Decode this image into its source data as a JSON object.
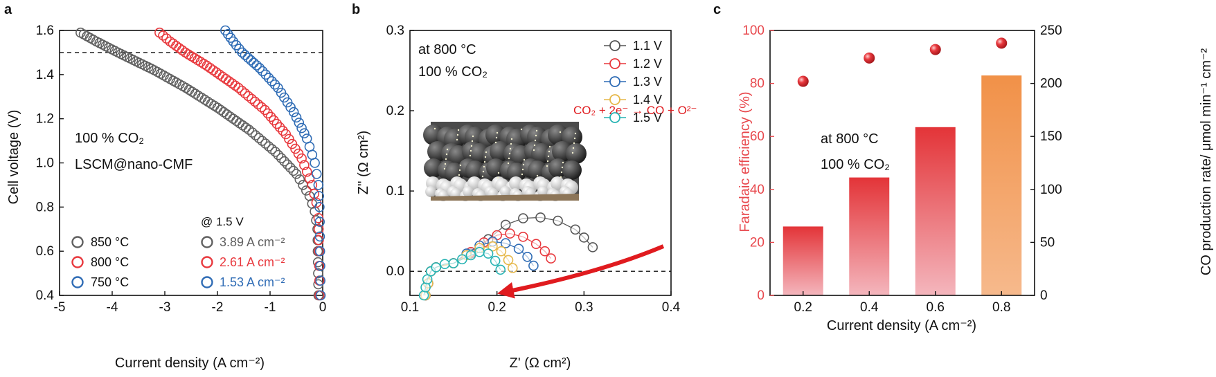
{
  "figure": {
    "panels": {
      "a": {
        "letter": "a",
        "xlabel": "Current density (A cm⁻²)",
        "ylabel": "Cell voltage (V)",
        "annotation_lines": [
          "100 % CO₂",
          "LSCM@nano-CMF"
        ],
        "legend_header": "@ 1.5 V"
      },
      "b": {
        "letter": "b",
        "xlabel": "Z' (Ω cm²)",
        "ylabel": "Z'' (Ω cm²)",
        "annotation_lines": [
          "at 800 °C",
          "100 % CO₂"
        ],
        "reaction": "CO₂ + 2e⁻ → CO + O²⁻"
      },
      "c": {
        "letter": "c",
        "xlabel": "Current density (A cm⁻²)",
        "ylabel_left": "Faradaic efficiency (%)",
        "ylabel_right": "CO production rate/ μmol min⁻¹ cm⁻²",
        "annotation_lines": [
          "at 800 °C",
          "100 % CO₂"
        ]
      }
    }
  },
  "chart_data": [
    {
      "panel": "a",
      "type": "scatter",
      "xlabel": "Current density (A cm⁻²)",
      "ylabel": "Cell voltage (V)",
      "xlim": [
        -5,
        0
      ],
      "ylim": [
        0.4,
        1.6
      ],
      "xticks": [
        "-5",
        "-4",
        "-3",
        "-2",
        "-1",
        "0"
      ],
      "yticks": [
        "0.4",
        "0.6",
        "0.8",
        "1.0",
        "1.2",
        "1.4",
        "1.6"
      ],
      "reference_line_y": 1.5,
      "legend_placement": "bottom-left",
      "series": [
        {
          "name": "850 °C",
          "current_at_1p5V": "3.89 A cm⁻²",
          "color": "#606060",
          "x": [
            -0.08,
            -0.09,
            -0.1,
            -0.15,
            -0.25,
            -0.5,
            -0.9,
            -1.4,
            -2.0,
            -2.6,
            -3.2,
            -3.89,
            -4.3,
            -4.6
          ],
          "y": [
            0.4,
            0.55,
            0.7,
            0.78,
            0.85,
            0.95,
            1.05,
            1.15,
            1.25,
            1.34,
            1.42,
            1.5,
            1.55,
            1.59
          ]
        },
        {
          "name": "800 °C",
          "current_at_1p5V": "2.61 A cm⁻²",
          "color": "#e8383d",
          "x": [
            -0.06,
            -0.07,
            -0.08,
            -0.12,
            -0.2,
            -0.4,
            -0.7,
            -1.1,
            -1.6,
            -2.2,
            -2.61,
            -2.9,
            -3.1
          ],
          "y": [
            0.4,
            0.6,
            0.75,
            0.82,
            0.9,
            1.02,
            1.13,
            1.24,
            1.34,
            1.44,
            1.5,
            1.55,
            1.59
          ]
        },
        {
          "name": "750 °C",
          "current_at_1p5V": "1.53 A cm⁻²",
          "color": "#2f6cb5",
          "x": [
            -0.04,
            -0.05,
            -0.06,
            -0.08,
            -0.15,
            -0.3,
            -0.55,
            -0.85,
            -1.2,
            -1.53,
            -1.7,
            -1.85
          ],
          "y": [
            0.4,
            0.6,
            0.8,
            0.9,
            1.0,
            1.11,
            1.23,
            1.34,
            1.43,
            1.5,
            1.55,
            1.6
          ]
        }
      ]
    },
    {
      "panel": "b",
      "type": "scatter",
      "xlabel": "Z' (Ω cm²)",
      "ylabel": "Z'' (Ω cm²)",
      "xlim": [
        0.1,
        0.4
      ],
      "ylim": [
        -0.03,
        0.3
      ],
      "xticks": [
        "0.1",
        "0.2",
        "0.3",
        "0.4"
      ],
      "yticks": [
        "0.0",
        "0.1",
        "0.2",
        "0.3"
      ],
      "reference_line_y": 0.0,
      "legend_placement": "top-right",
      "series": [
        {
          "name": "1.1 V",
          "color": "#555555",
          "x": [
            0.118,
            0.121,
            0.124,
            0.13,
            0.15,
            0.17,
            0.19,
            0.21,
            0.23,
            0.25,
            0.27,
            0.29,
            0.3,
            0.31
          ],
          "y": [
            -0.03,
            -0.015,
            0.0,
            0.005,
            0.01,
            0.022,
            0.04,
            0.058,
            0.066,
            0.067,
            0.063,
            0.052,
            0.042,
            0.03
          ]
        },
        {
          "name": "1.2 V",
          "color": "#e8383d",
          "x": [
            0.118,
            0.121,
            0.124,
            0.13,
            0.15,
            0.17,
            0.185,
            0.2,
            0.215,
            0.23,
            0.245,
            0.255,
            0.262
          ],
          "y": [
            -0.03,
            -0.015,
            0.0,
            0.005,
            0.01,
            0.024,
            0.036,
            0.045,
            0.047,
            0.043,
            0.034,
            0.025,
            0.016
          ]
        },
        {
          "name": "1.3 V",
          "color": "#2f6cb5",
          "x": [
            0.118,
            0.121,
            0.124,
            0.13,
            0.15,
            0.165,
            0.18,
            0.195,
            0.21,
            0.225,
            0.235,
            0.242
          ],
          "y": [
            -0.03,
            -0.015,
            0.0,
            0.005,
            0.01,
            0.022,
            0.032,
            0.037,
            0.035,
            0.028,
            0.018,
            0.007
          ]
        },
        {
          "name": "1.4 V",
          "color": "#e6b84a",
          "x": [
            0.118,
            0.121,
            0.124,
            0.13,
            0.15,
            0.165,
            0.18,
            0.195,
            0.205,
            0.213,
            0.218
          ],
          "y": [
            -0.03,
            -0.015,
            0.0,
            0.005,
            0.01,
            0.02,
            0.029,
            0.031,
            0.025,
            0.014,
            0.004
          ]
        },
        {
          "name": "1.5 V",
          "color": "#26b3b3",
          "x": [
            0.116,
            0.118,
            0.12,
            0.124,
            0.13,
            0.14,
            0.15,
            0.16,
            0.17,
            0.18,
            0.19,
            0.198,
            0.204
          ],
          "y": [
            -0.03,
            -0.02,
            -0.01,
            0.0,
            0.005,
            0.009,
            0.01,
            0.015,
            0.02,
            0.024,
            0.022,
            0.013,
            0.002
          ]
        }
      ]
    },
    {
      "panel": "c",
      "type": "bar",
      "xlabel": "Current density (A cm⁻²)",
      "ylabel": "Faradaic efficiency (%)",
      "ylabel_right": "CO production rate/ μmol min⁻¹ cm⁻²",
      "categories": [
        "0.2",
        "0.4",
        "0.6",
        "0.8"
      ],
      "ylim": [
        0,
        100
      ],
      "ylim_right": [
        0,
        250
      ],
      "yticks": [
        "0",
        "20",
        "40",
        "60",
        "80",
        "100"
      ],
      "yticks_right": [
        "0",
        "50",
        "100",
        "150",
        "200",
        "250"
      ],
      "series": [
        {
          "axis": "left",
          "kind": "bar",
          "values": [
            26,
            44.5,
            63.5,
            83
          ]
        },
        {
          "axis": "right",
          "kind": "scatter",
          "values": [
            202,
            224,
            232,
            238
          ]
        }
      ]
    }
  ]
}
